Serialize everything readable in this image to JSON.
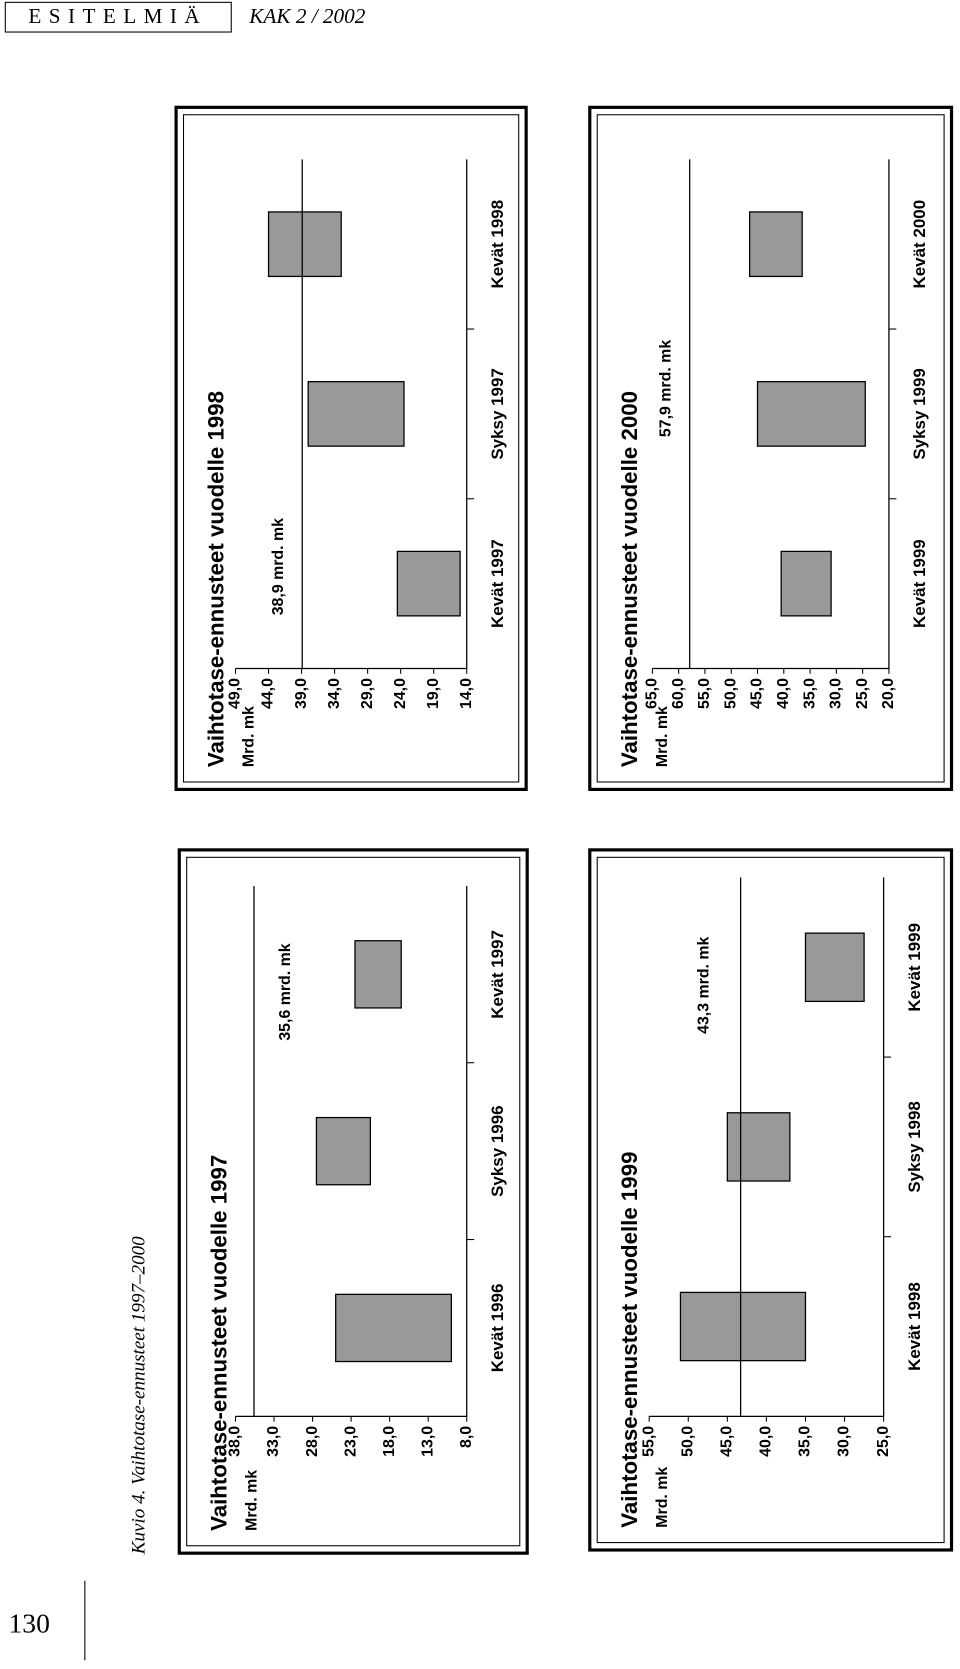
{
  "header": {
    "section": "ESITELMIÄ",
    "journal": "KAK 2 / 2002"
  },
  "caption": "Kuvio 4. Vaihtotase-ennusteet 1997–2000",
  "page_number": "130",
  "chart_data": [
    {
      "type": "range-bar",
      "title": "Vaihtotase-ennusteet vuodelle 1997",
      "ylabel": "Mrd. mk",
      "categories": [
        "Kevät 1996",
        "Syksy 1996",
        "Kevät 1997"
      ],
      "low": [
        10,
        20.5,
        16.5
      ],
      "high": [
        25,
        27.5,
        22.5
      ],
      "color": "#999999",
      "reference": 35.6,
      "reference_label": "35,6 mrd. mk",
      "ylim": [
        8,
        38
      ],
      "yticks": [
        {
          "value": 8,
          "label": "8,0"
        },
        {
          "value": 13,
          "label": "13,0"
        },
        {
          "value": 18,
          "label": "18,0"
        },
        {
          "value": 23,
          "label": "23,0"
        },
        {
          "value": 28,
          "label": "28,0"
        },
        {
          "value": 33,
          "label": "33,0"
        },
        {
          "value": 38,
          "label": "38,0"
        }
      ]
    },
    {
      "type": "range-bar",
      "title": "Vaihtotase-ennusteet vuodelle 1998",
      "ylabel": "Mrd. mk",
      "categories": [
        "Kevät 1997",
        "Syksy 1997",
        "Kevät 1998"
      ],
      "low": [
        15,
        23.5,
        33
      ],
      "high": [
        24.5,
        38,
        44
      ],
      "color": "#999999",
      "reference": 38.9,
      "reference_label": "38,9 mrd. mk",
      "ylim": [
        14,
        49
      ],
      "yticks": [
        {
          "value": 14,
          "label": "14,0"
        },
        {
          "value": 19,
          "label": "19,0"
        },
        {
          "value": 24,
          "label": "24,0"
        },
        {
          "value": 29,
          "label": "29,0"
        },
        {
          "value": 34,
          "label": "34,0"
        },
        {
          "value": 39,
          "label": "39,0"
        },
        {
          "value": 44,
          "label": "44,0"
        },
        {
          "value": 49,
          "label": "49,0"
        }
      ]
    },
    {
      "type": "range-bar",
      "title": "Vaihtotase-ennusteet vuodelle 1999",
      "ylabel": "Mrd. mk",
      "categories": [
        "Kevät 1998",
        "Syksy 1998",
        "Kevät 1999"
      ],
      "low": [
        35,
        37,
        27.5
      ],
      "high": [
        51,
        45,
        35
      ],
      "color": "#999999",
      "reference": 43.3,
      "reference_label": "43,3 mrd. mk",
      "ylim": [
        25,
        55
      ],
      "yticks": [
        {
          "value": 25,
          "label": "25,0"
        },
        {
          "value": 30,
          "label": "30,0"
        },
        {
          "value": 35,
          "label": "35,0"
        },
        {
          "value": 40,
          "label": "40,0"
        },
        {
          "value": 45,
          "label": "45,0"
        },
        {
          "value": 50,
          "label": "50,0"
        },
        {
          "value": 55,
          "label": "55,0"
        }
      ]
    },
    {
      "type": "range-bar",
      "title": "Vaihtotase-ennusteet vuodelle 2000",
      "ylabel": "Mrd. mk",
      "categories": [
        "Kevät 1999",
        "Syksy 1999",
        "Kevät 2000"
      ],
      "low": [
        31,
        24.5,
        36.5
      ],
      "high": [
        40.5,
        45,
        46.5
      ],
      "color": "#999999",
      "reference": 57.9,
      "reference_label": "57,9 mrd. mk",
      "ylim": [
        20,
        65
      ],
      "yticks": [
        {
          "value": 20,
          "label": "20,0"
        },
        {
          "value": 25,
          "label": "25,0"
        },
        {
          "value": 30,
          "label": "30,0"
        },
        {
          "value": 35,
          "label": "35,0"
        },
        {
          "value": 40,
          "label": "40,0"
        },
        {
          "value": 45,
          "label": "45,0"
        },
        {
          "value": 50,
          "label": "50,0"
        },
        {
          "value": 55,
          "label": "55,0"
        },
        {
          "value": 60,
          "label": "60,0"
        },
        {
          "value": 65,
          "label": "65,0"
        }
      ]
    }
  ]
}
